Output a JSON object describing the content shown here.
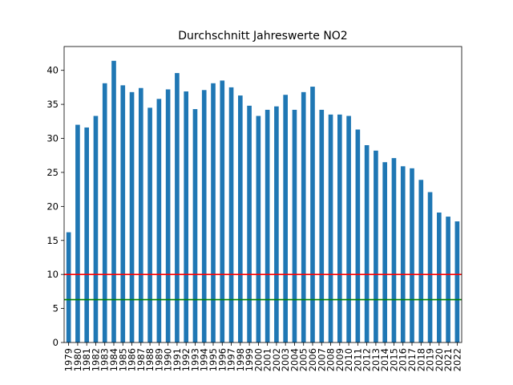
{
  "chart_data": {
    "type": "bar",
    "title": "Durchschnitt Jahreswerte NO2",
    "xlabel": "",
    "ylabel": "",
    "ylim": [
      0,
      43.5
    ],
    "yticks": [
      0,
      5,
      10,
      15,
      20,
      25,
      30,
      35,
      40
    ],
    "grid": false,
    "bar_color": "#1f77b4",
    "categories": [
      "1979",
      "1980",
      "1981",
      "1982",
      "1983",
      "1984",
      "1985",
      "1986",
      "1987",
      "1988",
      "1989",
      "1990",
      "1991",
      "1992",
      "1993",
      "1994",
      "1995",
      "1996",
      "1997",
      "1998",
      "1999",
      "2000",
      "2001",
      "2002",
      "2003",
      "2004",
      "2005",
      "2006",
      "2007",
      "2008",
      "2009",
      "2010",
      "2011",
      "2012",
      "2013",
      "2014",
      "2015",
      "2016",
      "2017",
      "2018",
      "2019",
      "2020",
      "2021",
      "2022"
    ],
    "values": [
      16.2,
      32.0,
      31.6,
      33.3,
      38.1,
      41.4,
      37.8,
      36.8,
      37.4,
      34.5,
      35.8,
      37.2,
      39.6,
      36.9,
      34.3,
      37.1,
      38.1,
      38.5,
      37.5,
      36.3,
      34.8,
      33.3,
      34.2,
      34.7,
      36.4,
      34.2,
      36.8,
      37.6,
      34.2,
      33.5,
      33.5,
      33.3,
      31.3,
      29.0,
      28.2,
      26.5,
      27.1,
      25.9,
      25.6,
      23.9,
      22.1,
      19.1,
      18.5,
      17.8
    ],
    "reference_lines": [
      {
        "value": 10,
        "color": "#ff0000"
      },
      {
        "value": 6.3,
        "color": "#008000"
      }
    ]
  }
}
